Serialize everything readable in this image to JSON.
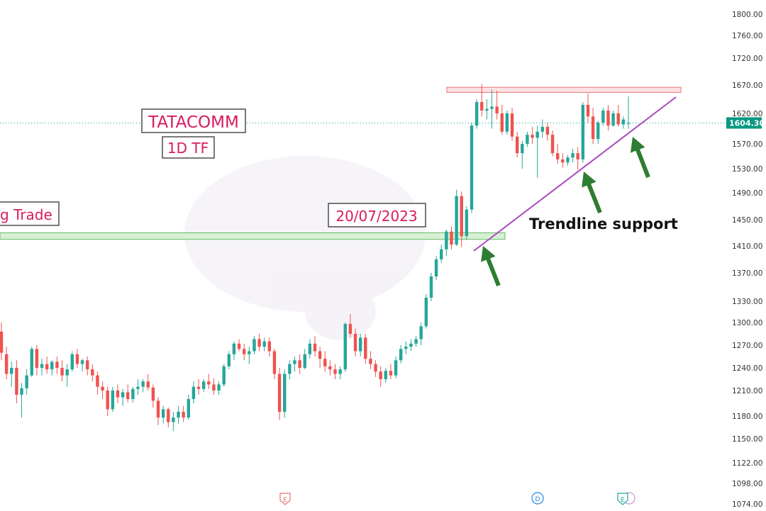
{
  "chart_data": {
    "type": "candlestick",
    "title": "TATACOMM",
    "subtitle": "1D TF",
    "y_ticks": [
      1800,
      1760,
      1720,
      1670,
      1620,
      1570,
      1530,
      1490,
      1450,
      1410,
      1370,
      1330,
      1300,
      1270,
      1240,
      1210,
      1180,
      1150,
      1122,
      1098,
      1074
    ],
    "y_tick_labels": [
      "1800.00",
      "1760.00",
      "1720.00",
      "1670.00",
      "1620.00",
      "1570.00",
      "1530.00",
      "1490.00",
      "1450.00",
      "1410.00",
      "1370.00",
      "1330.00",
      "1300.00",
      "1270.00",
      "1240.00",
      "1210.00",
      "1180.00",
      "1150.00",
      "1122.00",
      "1098.00",
      "1074.00"
    ],
    "last_price": 1604.3,
    "last_price_label": "1604.30",
    "candles": [
      [
        1288,
        1300,
        1250,
        1260
      ],
      [
        1258,
        1268,
        1225,
        1232
      ],
      [
        1232,
        1248,
        1215,
        1240
      ],
      [
        1240,
        1250,
        1195,
        1205
      ],
      [
        1205,
        1220,
        1178,
        1213
      ],
      [
        1213,
        1238,
        1205,
        1230
      ],
      [
        1230,
        1268,
        1228,
        1265
      ],
      [
        1265,
        1270,
        1230,
        1240
      ],
      [
        1240,
        1252,
        1230,
        1245
      ],
      [
        1245,
        1255,
        1232,
        1238
      ],
      [
        1238,
        1250,
        1230,
        1248
      ],
      [
        1248,
        1255,
        1232,
        1240
      ],
      [
        1240,
        1250,
        1222,
        1230
      ],
      [
        1230,
        1245,
        1215,
        1238
      ],
      [
        1238,
        1262,
        1235,
        1258
      ],
      [
        1258,
        1265,
        1240,
        1245
      ],
      [
        1245,
        1252,
        1235,
        1250
      ],
      [
        1250,
        1255,
        1230,
        1238
      ],
      [
        1238,
        1245,
        1222,
        1230
      ],
      [
        1230,
        1235,
        1205,
        1215
      ],
      [
        1215,
        1222,
        1200,
        1210
      ],
      [
        1210,
        1215,
        1180,
        1188
      ],
      [
        1188,
        1215,
        1185,
        1210
      ],
      [
        1210,
        1218,
        1195,
        1202
      ],
      [
        1202,
        1212,
        1192,
        1208
      ],
      [
        1208,
        1218,
        1196,
        1200
      ],
      [
        1200,
        1215,
        1196,
        1212
      ],
      [
        1212,
        1225,
        1205,
        1215
      ],
      [
        1215,
        1225,
        1208,
        1222
      ],
      [
        1222,
        1232,
        1210,
        1214
      ],
      [
        1214,
        1218,
        1190,
        1198
      ],
      [
        1198,
        1202,
        1168,
        1178
      ],
      [
        1178,
        1192,
        1170,
        1188
      ],
      [
        1188,
        1190,
        1165,
        1172
      ],
      [
        1172,
        1185,
        1160,
        1178
      ],
      [
        1178,
        1192,
        1170,
        1185
      ],
      [
        1185,
        1192,
        1172,
        1178
      ],
      [
        1178,
        1205,
        1175,
        1200
      ],
      [
        1200,
        1222,
        1195,
        1215
      ],
      [
        1215,
        1225,
        1205,
        1212
      ],
      [
        1212,
        1225,
        1208,
        1222
      ],
      [
        1222,
        1232,
        1212,
        1218
      ],
      [
        1218,
        1226,
        1205,
        1210
      ],
      [
        1210,
        1222,
        1205,
        1218
      ],
      [
        1218,
        1245,
        1215,
        1242
      ],
      [
        1242,
        1262,
        1238,
        1258
      ],
      [
        1258,
        1275,
        1250,
        1272
      ],
      [
        1272,
        1278,
        1262,
        1265
      ],
      [
        1265,
        1272,
        1250,
        1258
      ],
      [
        1258,
        1268,
        1245,
        1262
      ],
      [
        1262,
        1282,
        1258,
        1278
      ],
      [
        1278,
        1285,
        1262,
        1268
      ],
      [
        1268,
        1280,
        1262,
        1275
      ],
      [
        1275,
        1280,
        1255,
        1262
      ],
      [
        1262,
        1265,
        1225,
        1232
      ],
      [
        1232,
        1240,
        1175,
        1185
      ],
      [
        1185,
        1238,
        1178,
        1232
      ],
      [
        1232,
        1250,
        1225,
        1245
      ],
      [
        1245,
        1255,
        1235,
        1250
      ],
      [
        1250,
        1258,
        1232,
        1240
      ],
      [
        1240,
        1265,
        1238,
        1258
      ],
      [
        1258,
        1278,
        1252,
        1272
      ],
      [
        1272,
        1282,
        1255,
        1262
      ],
      [
        1262,
        1268,
        1240,
        1252
      ],
      [
        1252,
        1262,
        1235,
        1242
      ],
      [
        1242,
        1250,
        1230,
        1238
      ],
      [
        1238,
        1245,
        1225,
        1232
      ],
      [
        1232,
        1242,
        1225,
        1238
      ],
      [
        1238,
        1300,
        1235,
        1298
      ],
      [
        1298,
        1312,
        1280,
        1285
      ],
      [
        1285,
        1292,
        1255,
        1262
      ],
      [
        1262,
        1285,
        1255,
        1280
      ],
      [
        1280,
        1285,
        1245,
        1252
      ],
      [
        1252,
        1262,
        1238,
        1245
      ],
      [
        1245,
        1250,
        1228,
        1235
      ],
      [
        1235,
        1242,
        1215,
        1225
      ],
      [
        1225,
        1240,
        1220,
        1236
      ],
      [
        1236,
        1245,
        1225,
        1230
      ],
      [
        1230,
        1255,
        1226,
        1250
      ],
      [
        1250,
        1270,
        1246,
        1265
      ],
      [
        1265,
        1275,
        1258,
        1268
      ],
      [
        1268,
        1278,
        1262,
        1272
      ],
      [
        1272,
        1282,
        1268,
        1278
      ],
      [
        1278,
        1300,
        1270,
        1295
      ],
      [
        1295,
        1340,
        1292,
        1335
      ],
      [
        1335,
        1370,
        1330,
        1365
      ],
      [
        1365,
        1395,
        1360,
        1390
      ],
      [
        1390,
        1412,
        1385,
        1405
      ],
      [
        1405,
        1435,
        1395,
        1432
      ],
      [
        1432,
        1440,
        1405,
        1412
      ],
      [
        1412,
        1495,
        1410,
        1485
      ],
      [
        1485,
        1492,
        1408,
        1425
      ],
      [
        1425,
        1470,
        1420,
        1465
      ],
      [
        1465,
        1605,
        1460,
        1600
      ],
      [
        1600,
        1645,
        1595,
        1640
      ],
      [
        1640,
        1672,
        1615,
        1625
      ],
      [
        1625,
        1645,
        1610,
        1628
      ],
      [
        1628,
        1662,
        1595,
        1632
      ],
      [
        1632,
        1660,
        1610,
        1620
      ],
      [
        1620,
        1635,
        1585,
        1590
      ],
      [
        1590,
        1625,
        1585,
        1620
      ],
      [
        1620,
        1630,
        1575,
        1582
      ],
      [
        1582,
        1590,
        1548,
        1555
      ],
      [
        1555,
        1575,
        1530,
        1570
      ],
      [
        1570,
        1590,
        1565,
        1585
      ],
      [
        1585,
        1598,
        1570,
        1580
      ],
      [
        1580,
        1600,
        1515,
        1590
      ],
      [
        1590,
        1610,
        1580,
        1598
      ],
      [
        1598,
        1605,
        1575,
        1585
      ],
      [
        1585,
        1592,
        1550,
        1555
      ],
      [
        1555,
        1570,
        1538,
        1545
      ],
      [
        1545,
        1555,
        1532,
        1540
      ],
      [
        1540,
        1552,
        1535,
        1548
      ],
      [
        1548,
        1562,
        1540,
        1555
      ],
      [
        1555,
        1565,
        1528,
        1545
      ],
      [
        1545,
        1640,
        1540,
        1635
      ],
      [
        1635,
        1655,
        1605,
        1615
      ],
      [
        1615,
        1630,
        1570,
        1578
      ],
      [
        1578,
        1608,
        1570,
        1605
      ],
      [
        1605,
        1630,
        1600,
        1625
      ],
      [
        1625,
        1635,
        1592,
        1600
      ],
      [
        1600,
        1625,
        1598,
        1620
      ],
      [
        1620,
        1635,
        1598,
        1602
      ],
      [
        1602,
        1615,
        1595,
        1610
      ],
      [
        1604,
        1650,
        1595,
        1604
      ]
    ],
    "annotations": [
      {
        "text": "20/07/2023"
      },
      {
        "text": "Trendline support"
      },
      {
        "text": "g Trade"
      }
    ],
    "markers": [
      "E",
      "D",
      "E"
    ],
    "resistance_zone": [
      1657,
      1666
    ],
    "support_zone": [
      1420,
      1430
    ]
  },
  "colors": {
    "up": "#26a69a",
    "down": "#ef5350",
    "label_text": "#d81b60",
    "trendline": "#ab47bc",
    "arrow": "#2e7d32",
    "price_badge": "#089981"
  }
}
